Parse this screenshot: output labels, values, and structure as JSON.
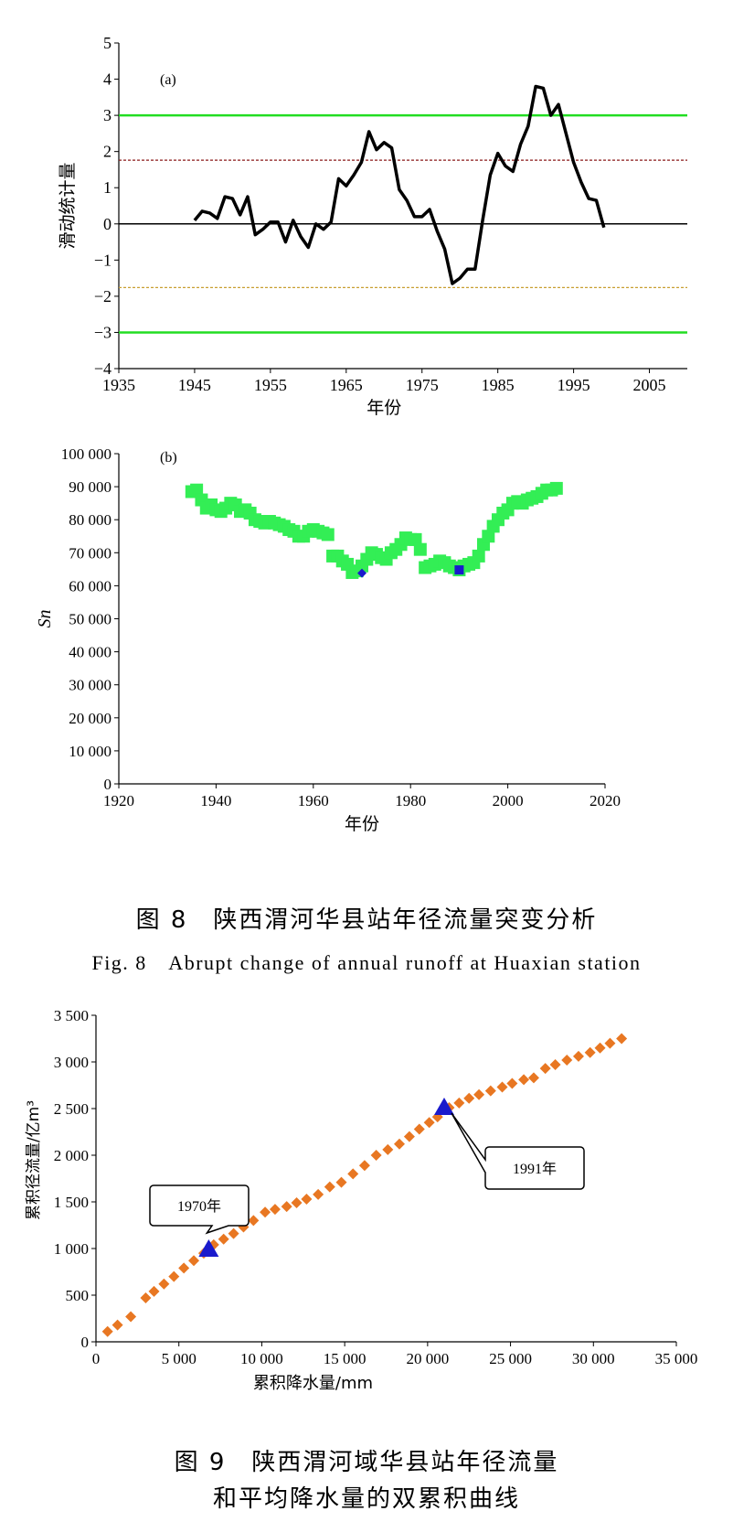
{
  "chart_data": [
    {
      "type": "line",
      "panel_label": "(a)",
      "xlabel": "年份",
      "ylabel": "滑动统计量",
      "xlim": [
        1935,
        2010
      ],
      "ylim": [
        -4,
        5
      ],
      "xticks": [
        1935,
        1945,
        1955,
        1965,
        1975,
        1985,
        1995,
        2005
      ],
      "yticks": [
        -4,
        -3,
        -2,
        -1,
        0,
        1,
        2,
        3,
        4,
        5
      ],
      "ytick_labels": [
        "−4",
        "−3",
        "−2",
        "−1",
        "0",
        "1",
        "2",
        "3",
        "4",
        "5"
      ],
      "colors": {
        "line": "#000000",
        "sig_high": "#22dd22",
        "sig_low_pos": "#8b1a1a",
        "sig_low_neg": "#c8a032",
        "zero": "#000000"
      },
      "reference_lines": [
        {
          "y": 3,
          "style": "solid",
          "color": "#22dd22"
        },
        {
          "y": 1.76,
          "style": "dashed",
          "color": "#8b1a1a"
        },
        {
          "y": 0,
          "style": "solid",
          "color": "#000000"
        },
        {
          "y": -1.76,
          "style": "dashed",
          "color": "#c8a032"
        },
        {
          "y": -3,
          "style": "solid",
          "color": "#22dd22"
        }
      ],
      "series": [
        {
          "x": [
            1945,
            1946,
            1947,
            1948,
            1949,
            1950,
            1951,
            1952,
            1953,
            1954,
            1955,
            1956,
            1957,
            1958,
            1959,
            1960,
            1961,
            1962,
            1963,
            1964,
            1965,
            1966,
            1967,
            1968,
            1969,
            1970,
            1971,
            1972,
            1973,
            1974,
            1975,
            1976,
            1977,
            1978,
            1979,
            1980,
            1981,
            1982,
            1983,
            1984,
            1985,
            1986,
            1987,
            1988,
            1989,
            1990,
            1991,
            1992,
            1993,
            1994,
            1995,
            1996,
            1997,
            1998,
            1999
          ],
          "y": [
            0.1,
            0.35,
            0.3,
            0.15,
            0.75,
            0.7,
            0.25,
            0.75,
            -0.3,
            -0.15,
            0.05,
            0.05,
            -0.5,
            0.1,
            -0.35,
            -0.65,
            0.0,
            -0.15,
            0.05,
            1.25,
            1.05,
            1.35,
            1.7,
            2.55,
            2.05,
            2.25,
            2.1,
            0.95,
            0.65,
            0.2,
            0.2,
            0.4,
            -0.2,
            -0.7,
            -1.65,
            -1.5,
            -1.25,
            -1.25,
            0.1,
            1.35,
            1.95,
            1.6,
            1.45,
            2.2,
            2.7,
            3.8,
            3.75,
            3.0,
            3.3,
            2.5,
            1.7,
            1.15,
            0.7,
            0.65,
            -0.1
          ]
        }
      ]
    },
    {
      "type": "scatter",
      "panel_label": "(b)",
      "xlabel": "年份",
      "ylabel": "Sn",
      "xlim": [
        1920,
        2020
      ],
      "ylim": [
        0,
        100000
      ],
      "xticks": [
        1920,
        1940,
        1960,
        1980,
        2000,
        2020
      ],
      "yticks": [
        0,
        10000,
        20000,
        30000,
        40000,
        50000,
        60000,
        70000,
        80000,
        90000,
        100000
      ],
      "ytick_labels": [
        "0",
        "10 000",
        "20 000",
        "30 000",
        "40 000",
        "50 000",
        "60 000",
        "70 000",
        "80 000",
        "90 000",
        "100 000"
      ],
      "colors": {
        "points": "#33ee55",
        "highlight": "#1a1acc"
      },
      "series": [
        {
          "x": [
            1935,
            1936,
            1937,
            1938,
            1939,
            1940,
            1941,
            1942,
            1943,
            1944,
            1945,
            1946,
            1947,
            1948,
            1949,
            1950,
            1951,
            1952,
            1953,
            1954,
            1955,
            1956,
            1957,
            1958,
            1959,
            1960,
            1961,
            1962,
            1963,
            1964,
            1965,
            1966,
            1967,
            1968,
            1969,
            1970,
            1971,
            1972,
            1973,
            1974,
            1975,
            1976,
            1977,
            1978,
            1979,
            1980,
            1981,
            1982,
            1983,
            1984,
            1985,
            1986,
            1987,
            1988,
            1989,
            1990,
            1991,
            1992,
            1993,
            1994,
            1995,
            1996,
            1997,
            1998,
            1999,
            2000,
            2001,
            2002,
            2003,
            2004,
            2005,
            2006,
            2007,
            2008,
            2009,
            2010
          ],
          "y": [
            88500,
            89000,
            86000,
            83500,
            84500,
            83000,
            82500,
            83500,
            85000,
            84500,
            82500,
            83000,
            82000,
            80000,
            79500,
            79000,
            79500,
            79000,
            78500,
            78000,
            77000,
            76500,
            75000,
            75000,
            76500,
            77000,
            76500,
            76000,
            75500,
            69000,
            69000,
            67500,
            66500,
            64000,
            64500,
            66000,
            68000,
            70000,
            69500,
            68500,
            68000,
            70000,
            71000,
            72500,
            74500,
            74000,
            74000,
            71000,
            65500,
            66000,
            66500,
            67500,
            67000,
            66000,
            65500,
            64800,
            66000,
            66500,
            67000,
            69000,
            72500,
            75000,
            78000,
            80000,
            82000,
            83000,
            85000,
            85500,
            85000,
            86000,
            86500,
            87000,
            88000,
            89000,
            89000,
            89500
          ]
        },
        {
          "name": "highlight",
          "x": [
            1970,
            1990
          ],
          "y": [
            63800,
            64800
          ]
        }
      ]
    },
    {
      "type": "scatter",
      "xlabel": "累积降水量/mm",
      "ylabel": "累积径流量/亿m³",
      "xlim": [
        0,
        35000
      ],
      "ylim": [
        0,
        3500
      ],
      "xticks": [
        0,
        5000,
        10000,
        15000,
        20000,
        25000,
        30000,
        35000
      ],
      "xtick_labels": [
        "0",
        "5 000",
        "10 000",
        "15 000",
        "20 000",
        "25 000",
        "30 000",
        "35 000"
      ],
      "yticks": [
        0,
        500,
        1000,
        1500,
        2000,
        2500,
        3000,
        3500
      ],
      "ytick_labels": [
        "0",
        "500",
        "1 000",
        "1 500",
        "2 000",
        "2 500",
        "3 000",
        "3 500"
      ],
      "colors": {
        "points": "#e87722",
        "markers": "#1a1acc"
      },
      "series": [
        {
          "x": [
            700,
            1300,
            2100,
            3000,
            3500,
            4100,
            4700,
            5300,
            5900,
            6500,
            7100,
            7700,
            8300,
            8900,
            9500,
            10200,
            10800,
            11500,
            12100,
            12700,
            13400,
            14100,
            14800,
            15500,
            16200,
            16900,
            17600,
            18300,
            18900,
            19500,
            20100,
            20600,
            21300,
            21900,
            22500,
            23100,
            23800,
            24500,
            25100,
            25800,
            26400,
            27100,
            27700,
            28400,
            29100,
            29800,
            30400,
            31000,
            31700
          ],
          "y": [
            110,
            180,
            270,
            470,
            540,
            620,
            700,
            790,
            870,
            950,
            1040,
            1100,
            1160,
            1230,
            1300,
            1390,
            1420,
            1450,
            1490,
            1530,
            1580,
            1660,
            1710,
            1800,
            1890,
            2000,
            2060,
            2120,
            2200,
            2280,
            2350,
            2410,
            2510,
            2560,
            2610,
            2650,
            2690,
            2730,
            2770,
            2810,
            2830,
            2930,
            2970,
            3020,
            3060,
            3100,
            3150,
            3200,
            3250
          ]
        },
        {
          "name": "markers",
          "x": [
            6800,
            21000
          ],
          "y": [
            990,
            2510
          ]
        }
      ],
      "annotations": [
        {
          "text": "1970年",
          "x": 6800,
          "y": 990
        },
        {
          "text": "1991年",
          "x": 21000,
          "y": 2510
        }
      ]
    }
  ],
  "captions": {
    "fig8_cn": "图 8　陕西渭河华县站年径流量突变分析",
    "fig8_en": "Fig. 8　Abrupt change of annual runoff at Huaxian station",
    "fig9_line1": "图 9　陕西渭河域华县站年径流量",
    "fig9_line2": "和平均降水量的双累积曲线"
  }
}
